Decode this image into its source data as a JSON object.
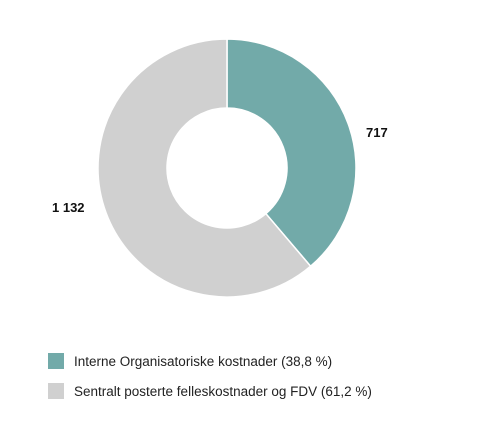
{
  "chart_data": {
    "type": "pie",
    "style": "donut",
    "slices": [
      {
        "name": "Interne Organisatoriske kostnader (38,8 %)",
        "value": 717,
        "label": "717",
        "color": "#72aaa9"
      },
      {
        "name": "Sentralt posterte felleskostnader og FDV (61,2 %)",
        "value": 1132,
        "label": "1 132",
        "color": "#d0d0d0"
      }
    ],
    "legend_placement": "bottom"
  }
}
